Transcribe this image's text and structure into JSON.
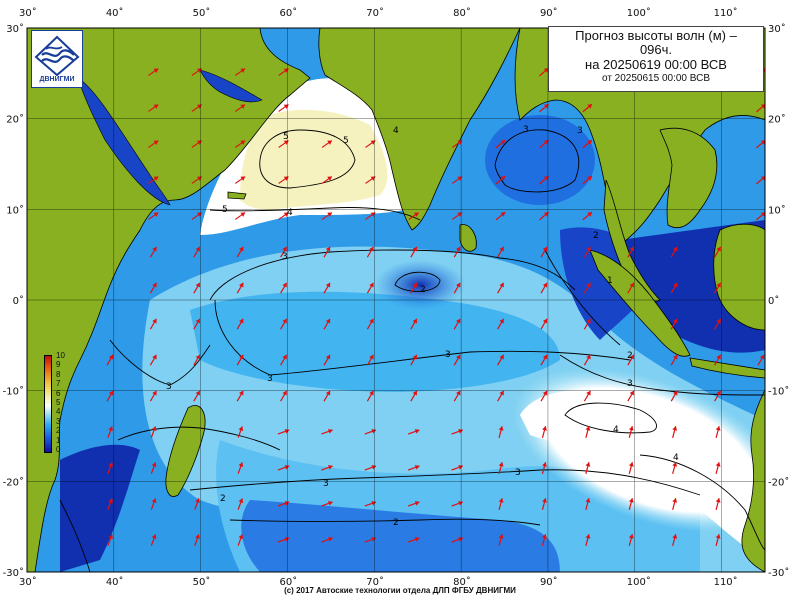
{
  "title": {
    "line1": "Прогноз высоты волн (м) –",
    "line2": "096ч.",
    "line3": "на 20250619 00:00 ВСВ",
    "line4": "от 20250615 00:00 ВСВ"
  },
  "logo": {
    "icon": "wave-logo-icon",
    "text": "ДВНИГМИ"
  },
  "footer": "(с) 2017 Автоские технологии отдела ДЛП ФГБУ ДВНИГМИ",
  "axes": {
    "lon_labels": [
      "30˚",
      "40˚",
      "50˚",
      "60˚",
      "70˚",
      "80˚",
      "90˚",
      "100˚",
      "110˚"
    ],
    "lat_labels": [
      "30˚",
      "20˚",
      "10˚",
      "0˚",
      "-10˚",
      "-20˚",
      "-30˚"
    ]
  },
  "scale": {
    "labels": [
      "10",
      "9",
      "8",
      "7",
      "6",
      "5",
      "4",
      "3",
      "2",
      "1",
      "0"
    ]
  },
  "contour_labels": {
    "arabian_5a": "5",
    "arabian_5b": "5",
    "arabian_5c": "5",
    "arabian_4": "4",
    "bengal_3": "3",
    "eq_3": "3",
    "eq_2": "2",
    "sumatra_2": "2",
    "sumatra_1": "1",
    "south_3a": "3",
    "south_3b": "3",
    "java_2": "2",
    "java_3": "3",
    "se_4a": "4",
    "se_4b": "4",
    "sw_3": "3",
    "sw_2": "2",
    "s_3": "3",
    "s_3b": "3",
    "s_2": "2",
    "bengal_4": "4",
    "bengal_3b": "3"
  },
  "colors": {
    "land": "#88b020",
    "grid": "#000000",
    "arrow": "#e01010",
    "very_low": "#1030b0",
    "low": "#1f7ae8",
    "mid": "#42b4f0",
    "light": "#a8e4f6",
    "white": "#ffffff",
    "pale_yellow": "#f6f2c0"
  }
}
